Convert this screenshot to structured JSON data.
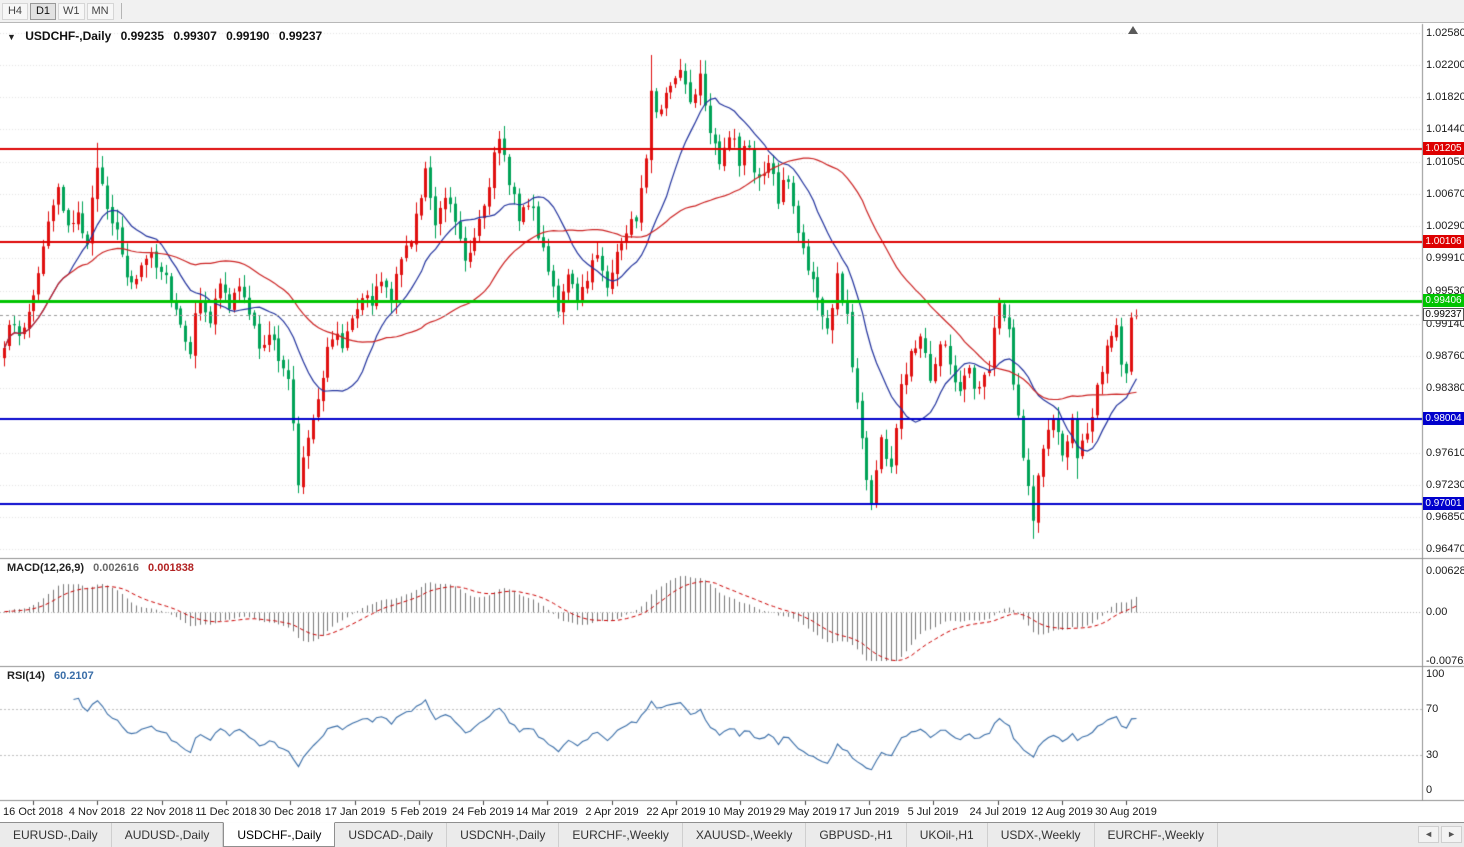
{
  "toolbar": {
    "timeframes": [
      {
        "label": "H4",
        "active": false
      },
      {
        "label": "D1",
        "active": true
      },
      {
        "label": "W1",
        "active": false
      },
      {
        "label": "MN",
        "active": false
      }
    ]
  },
  "icons": {
    "chart_dropdown": "▼",
    "tab_scroll_left": "◄",
    "tab_scroll_right": "►"
  },
  "chart_data": {
    "type": "candlestick",
    "symbol": "USDCHF-,Daily",
    "ohlc": {
      "open": "0.99235",
      "high": "0.99307",
      "low": "0.99190",
      "close": "0.99237"
    },
    "price_axis": {
      "ticks": [
        "1.02580",
        "1.02200",
        "1.01820",
        "1.01440",
        "1.01050",
        "1.00670",
        "1.00290",
        "0.99910",
        "0.99530",
        "0.99140",
        "0.98760",
        "0.98380",
        "0.97610",
        "0.97230",
        "0.96850",
        "0.96470"
      ],
      "ylim": [
        0.96363,
        1.02687
      ]
    },
    "bars": 232,
    "price_waypoints": [
      [
        0,
        0.9885
      ],
      [
        2,
        0.992
      ],
      [
        4,
        0.99
      ],
      [
        7,
        0.9975
      ],
      [
        9,
        1.004
      ],
      [
        11,
        1.0065
      ],
      [
        13,
        1.002
      ],
      [
        15,
        1.0055
      ],
      [
        17,
        1.0
      ],
      [
        19,
        1.0105
      ],
      [
        20,
        1.008
      ],
      [
        22,
        1.004
      ],
      [
        24,
        0.999
      ],
      [
        26,
        0.9955
      ],
      [
        28,
        0.9985
      ],
      [
        30,
        1.0
      ],
      [
        33,
        0.997
      ],
      [
        35,
        0.993
      ],
      [
        38,
        0.9885
      ],
      [
        40,
        0.995
      ],
      [
        42,
        0.992
      ],
      [
        44,
        0.9955
      ],
      [
        46,
        0.9935
      ],
      [
        48,
        0.996
      ],
      [
        50,
        0.992
      ],
      [
        52,
        0.989
      ],
      [
        54,
        0.9905
      ],
      [
        56,
        0.987
      ],
      [
        58,
        0.9845
      ],
      [
        59,
        0.98
      ],
      [
        60,
        0.9725
      ],
      [
        61,
        0.976
      ],
      [
        63,
        0.981
      ],
      [
        65,
        0.9855
      ],
      [
        67,
        0.9905
      ],
      [
        69,
        0.9885
      ],
      [
        71,
        0.993
      ],
      [
        73,
        0.995
      ],
      [
        75,
        0.9935
      ],
      [
        77,
        0.9965
      ],
      [
        79,
        0.9945
      ],
      [
        81,
        0.9985
      ],
      [
        83,
        1.002
      ],
      [
        85,
        1.006
      ],
      [
        86,
        1.009
      ],
      [
        88,
        1.004
      ],
      [
        90,
        1.007
      ],
      [
        92,
        1.004
      ],
      [
        94,
        0.9995
      ],
      [
        96,
        1.002
      ],
      [
        98,
        1.006
      ],
      [
        100,
        1.011
      ],
      [
        101,
        1.0125
      ],
      [
        103,
        1.0085
      ],
      [
        105,
        1.0045
      ],
      [
        107,
        1.006
      ],
      [
        109,
        1.002
      ],
      [
        111,
        0.9985
      ],
      [
        113,
        0.9935
      ],
      [
        115,
        0.9965
      ],
      [
        117,
        0.9935
      ],
      [
        119,
        0.9975
      ],
      [
        121,
        0.9995
      ],
      [
        123,
        0.9965
      ],
      [
        125,
        0.9995
      ],
      [
        127,
        1.0025
      ],
      [
        129,
        1.004
      ],
      [
        131,
        1.012
      ],
      [
        132,
        1.019
      ],
      [
        134,
        1.016
      ],
      [
        136,
        1.02
      ],
      [
        138,
        1.0215
      ],
      [
        140,
        1.018
      ],
      [
        142,
        1.021
      ],
      [
        144,
        1.015
      ],
      [
        146,
        1.011
      ],
      [
        148,
        1.014
      ],
      [
        150,
        1.0105
      ],
      [
        152,
        1.0125
      ],
      [
        154,
        1.008
      ],
      [
        156,
        1.01
      ],
      [
        158,
        1.0065
      ],
      [
        160,
        1.0085
      ],
      [
        162,
        1.002
      ],
      [
        164,
        0.9985
      ],
      [
        166,
        0.994
      ],
      [
        168,
        0.9905
      ],
      [
        170,
        0.9965
      ],
      [
        172,
        0.992
      ],
      [
        174,
        0.982
      ],
      [
        176,
        0.9735
      ],
      [
        177,
        0.9705
      ],
      [
        179,
        0.9775
      ],
      [
        181,
        0.9745
      ],
      [
        183,
        0.9835
      ],
      [
        185,
        0.9885
      ],
      [
        187,
        0.9905
      ],
      [
        189,
        0.9855
      ],
      [
        191,
        0.9895
      ],
      [
        193,
        0.987
      ],
      [
        195,
        0.9835
      ],
      [
        197,
        0.986
      ],
      [
        199,
        0.983
      ],
      [
        201,
        0.987
      ],
      [
        203,
        0.9935
      ],
      [
        205,
        0.99
      ],
      [
        206,
        0.9845
      ],
      [
        208,
        0.975
      ],
      [
        210,
        0.969
      ],
      [
        212,
        0.977
      ],
      [
        214,
        0.98
      ],
      [
        216,
        0.976
      ],
      [
        218,
        0.9795
      ],
      [
        219,
        0.9745
      ],
      [
        221,
        0.9785
      ],
      [
        223,
        0.984
      ],
      [
        225,
        0.9895
      ],
      [
        227,
        0.9905
      ],
      [
        228,
        0.986
      ],
      [
        229,
        0.9855
      ],
      [
        230,
        0.9922
      ],
      [
        231,
        0.99237
      ]
    ],
    "key_extremes": [
      [
        19,
        "high",
        1.0128
      ],
      [
        60,
        "low",
        0.9716
      ],
      [
        101,
        "high",
        1.0142
      ],
      [
        132,
        "high",
        1.0232
      ],
      [
        142,
        "high",
        1.0226
      ],
      [
        177,
        "low",
        0.9693
      ],
      [
        210,
        "low",
        0.9659
      ],
      [
        219,
        "low",
        0.973
      ]
    ],
    "prev_bar": {
      "open": 0.9857,
      "high": 0.9927,
      "low": 0.9853,
      "close": 0.9921
    },
    "last_bar": {
      "open": 0.99235,
      "high": 0.99307,
      "low": 0.9919,
      "close": 0.99237
    },
    "hlines": [
      {
        "price": 1.01205,
        "label": "1.01205",
        "color": "#dd0000",
        "width": 2
      },
      {
        "price": 1.00106,
        "label": "1.00106",
        "color": "#dd0000",
        "width": 2
      },
      {
        "price": 0.99406,
        "label": "0.99406",
        "color": "#00c400",
        "width": 3
      },
      {
        "price": 0.98004,
        "label": "0.98004",
        "color": "#0000cc",
        "width": 2
      },
      {
        "price": 0.97001,
        "label": "0.97001",
        "color": "#0000cc",
        "width": 2
      }
    ],
    "current_price": {
      "label": "0.99237",
      "value": 0.99237
    },
    "moving_averages": [
      {
        "type": "sma",
        "period": 14,
        "color": "#22339e"
      },
      {
        "type": "sma",
        "period": 40,
        "color": "#cc2222"
      }
    ],
    "candle_colors": {
      "bull": "#e01010",
      "bear": "#00a357"
    },
    "macd": {
      "label": "MACD(12,26,9)",
      "value_main": "0.002616",
      "value_signal": "0.001838",
      "params": [
        12,
        26,
        9
      ],
      "axis_ticks": [
        "0.006286",
        "0.00",
        "-0.00762"
      ],
      "ylim": [
        -0.00762,
        0.006286
      ],
      "histogram_color": "#7a7a7a",
      "signal_color": "#cc0000"
    },
    "rsi": {
      "label": "RSI(14)",
      "value": "60.2107",
      "period": 14,
      "axis_ticks": [
        "100",
        "70",
        "30",
        "0"
      ],
      "levels": [
        70,
        30
      ],
      "ylim": [
        0,
        100
      ],
      "line_color": "#3a6ea8"
    },
    "dates": [
      "16 Oct 2018",
      "4 Nov 2018",
      "22 Nov 2018",
      "11 Dec 2018",
      "30 Dec 2018",
      "17 Jan 2019",
      "5 Feb 2019",
      "24 Feb 2019",
      "14 Mar 2019",
      "2 Apr 2019",
      "22 Apr 2019",
      "10 May 2019",
      "29 May 2019",
      "17 Jun 2019",
      "5 Jul 2019",
      "24 Jul 2019",
      "12 Aug 2019",
      "30 Aug 2019"
    ]
  },
  "tabbar": {
    "tabs": [
      {
        "label": "EURUSD-,Daily",
        "active": false
      },
      {
        "label": "AUDUSD-,Daily",
        "active": false
      },
      {
        "label": "USDCHF-,Daily",
        "active": true
      },
      {
        "label": "USDCAD-,Daily",
        "active": false
      },
      {
        "label": "USDCNH-,Daily",
        "active": false
      },
      {
        "label": "EURCHF-,Weekly",
        "active": false
      },
      {
        "label": "XAUUSD-,Weekly",
        "active": false
      },
      {
        "label": "GBPUSD-,H1",
        "active": false
      },
      {
        "label": "UKOil-,H1",
        "active": false
      },
      {
        "label": "USDX-,Weekly",
        "active": false
      },
      {
        "label": "EURCHF-,Weekly",
        "active": false
      }
    ]
  }
}
